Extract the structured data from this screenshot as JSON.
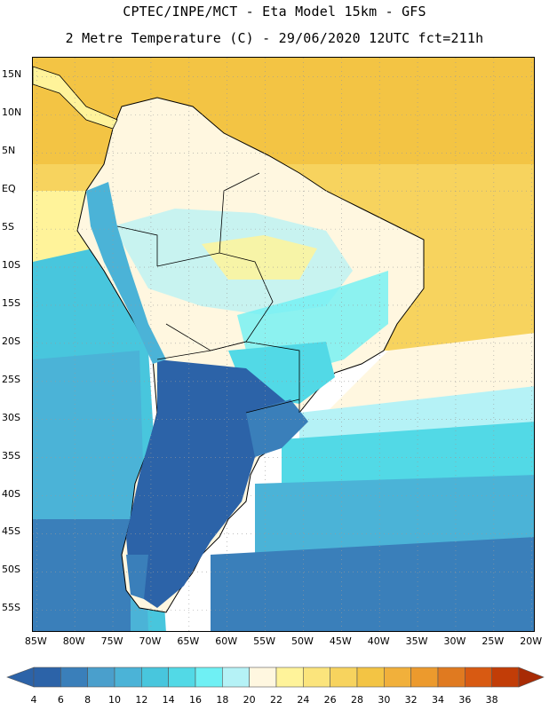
{
  "header": {
    "line1": "CPTEC/INPE/MCT -  Eta Model 15km - GFS",
    "line2": "2 Metre Temperature (C) - 29/06/2020 12UTC fct=211h"
  },
  "map": {
    "lat_labels": [
      "15N",
      "10N",
      "5N",
      "EQ",
      "5S",
      "10S",
      "15S",
      "20S",
      "25S",
      "30S",
      "35S",
      "40S",
      "45S",
      "50S",
      "55S"
    ],
    "lon_labels": [
      "85W",
      "80W",
      "75W",
      "70W",
      "65W",
      "60W",
      "55W",
      "50W",
      "45W",
      "40W",
      "35W",
      "30W",
      "25W",
      "20W"
    ],
    "lat_range": [
      17.5,
      -58
    ],
    "lon_range": [
      -85.5,
      -19.5
    ]
  },
  "colorbar": {
    "levels": [
      "4",
      "6",
      "8",
      "10",
      "12",
      "14",
      "16",
      "18",
      "20",
      "22",
      "24",
      "26",
      "28",
      "30",
      "32",
      "34",
      "36",
      "38"
    ],
    "colors": [
      "#2c63a8",
      "#3a7fba",
      "#4a9fcc",
      "#4bb3d7",
      "#48c6dd",
      "#52d9e6",
      "#6ff0f4",
      "#b5f2f6",
      "#fff7e0",
      "#fff39a",
      "#fbe47c",
      "#f7d35e",
      "#f3c444",
      "#f1b03b",
      "#ec9a2d",
      "#e07a20",
      "#d85a12",
      "#c23d07",
      "#a82b05"
    ]
  }
}
